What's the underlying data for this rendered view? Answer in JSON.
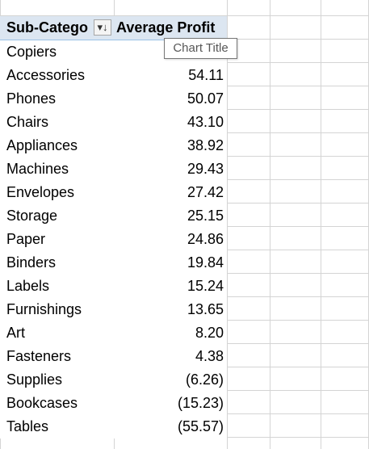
{
  "header": {
    "sub_category_label": "Sub-Catego",
    "average_profit_label": "Average Profit",
    "filter_icon": "sort-filter-icon",
    "filter_glyph": "▾↓"
  },
  "tooltip": {
    "text": "Chart Title"
  },
  "rows": [
    {
      "label": "Copiers",
      "value": ""
    },
    {
      "label": "Accessories",
      "value": "54.11"
    },
    {
      "label": "Phones",
      "value": "50.07"
    },
    {
      "label": "Chairs",
      "value": "43.10"
    },
    {
      "label": "Appliances",
      "value": "38.92"
    },
    {
      "label": "Machines",
      "value": "29.43"
    },
    {
      "label": "Envelopes",
      "value": "27.42"
    },
    {
      "label": "Storage",
      "value": "25.15"
    },
    {
      "label": "Paper",
      "value": "24.86"
    },
    {
      "label": "Binders",
      "value": "19.84"
    },
    {
      "label": "Labels",
      "value": "15.24"
    },
    {
      "label": "Furnishings",
      "value": "13.65"
    },
    {
      "label": "Art",
      "value": "8.20"
    },
    {
      "label": "Fasteners",
      "value": "4.38"
    },
    {
      "label": "Supplies",
      "value": "(6.26)"
    },
    {
      "label": "Bookcases",
      "value": "(15.23)"
    },
    {
      "label": "Tables",
      "value": "(55.57)"
    }
  ]
}
